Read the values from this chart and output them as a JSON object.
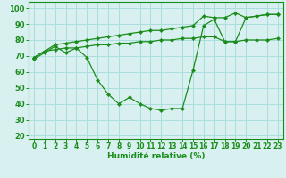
{
  "x": [
    0,
    1,
    2,
    3,
    4,
    5,
    6,
    7,
    8,
    9,
    10,
    11,
    12,
    13,
    14,
    15,
    16,
    17,
    18,
    19,
    20,
    21,
    22,
    23
  ],
  "line_dip": [
    68,
    72,
    76,
    72,
    75,
    69,
    55,
    46,
    40,
    44,
    40,
    37,
    36,
    37,
    37,
    61,
    89,
    93,
    79,
    79,
    94,
    95,
    96,
    96
  ],
  "line_upper": [
    69,
    73,
    77,
    78,
    79,
    80,
    81,
    82,
    83,
    84,
    85,
    86,
    86,
    87,
    88,
    89,
    95,
    94,
    94,
    97,
    94,
    95,
    96,
    96
  ],
  "line_lower": [
    69,
    73,
    74,
    75,
    75,
    76,
    77,
    77,
    78,
    78,
    79,
    79,
    80,
    80,
    81,
    81,
    82,
    82,
    79,
    79,
    80,
    80,
    80,
    81
  ],
  "color": "#1a8c1a",
  "bg_color": "#d8f0f0",
  "grid_color": "#aadddd",
  "xlabel": "Humidité relative (%)",
  "ylabel_ticks": [
    20,
    30,
    40,
    50,
    60,
    70,
    80,
    90,
    100
  ],
  "xlim": [
    -0.5,
    23.5
  ],
  "ylim": [
    18,
    104
  ],
  "xticks": [
    0,
    1,
    2,
    3,
    4,
    5,
    6,
    7,
    8,
    9,
    10,
    11,
    12,
    13,
    14,
    15,
    16,
    17,
    18,
    19,
    20,
    21,
    22,
    23
  ],
  "xlabel_fontsize": 6.5,
  "tick_fontsize": 5.5,
  "linewidth": 0.9,
  "markersize": 2.2
}
